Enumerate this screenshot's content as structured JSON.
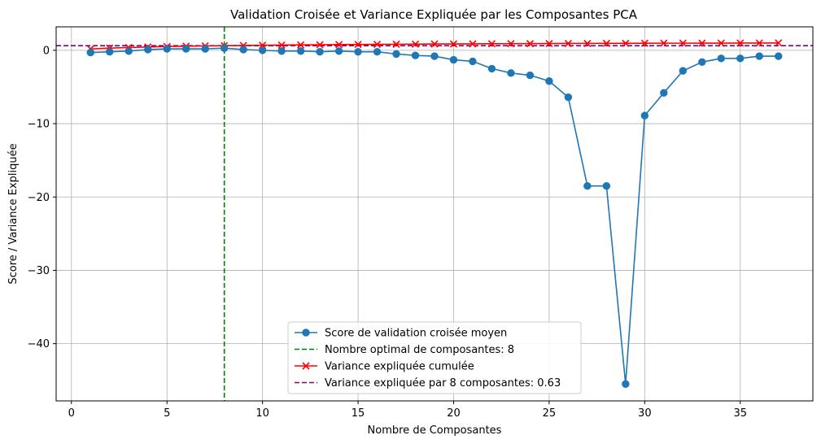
{
  "chart_data": {
    "type": "line",
    "title": "Validation Croisée et Variance Expliquée par les Composantes PCA",
    "xlabel": "Nombre de Composantes",
    "ylabel": "Score / Variance Expliquée",
    "xlim": [
      -0.8,
      38.8
    ],
    "ylim": [
      -47.8,
      3.2
    ],
    "xticks": [
      0,
      5,
      10,
      15,
      20,
      25,
      30,
      35
    ],
    "xtick_labels": [
      "0",
      "5",
      "10",
      "15",
      "20",
      "25",
      "30",
      "35"
    ],
    "yticks": [
      0,
      -10,
      -20,
      -30,
      -40
    ],
    "ytick_labels": [
      "0",
      "−10",
      "−20",
      "−30",
      "−40"
    ],
    "grid": true,
    "legend_position": "bottom-center",
    "x": [
      1,
      2,
      3,
      4,
      5,
      6,
      7,
      8,
      9,
      10,
      11,
      12,
      13,
      14,
      15,
      16,
      17,
      18,
      19,
      20,
      21,
      22,
      23,
      24,
      25,
      26,
      27,
      28,
      29,
      30,
      31,
      32,
      33,
      34,
      35,
      36,
      37
    ],
    "series": [
      {
        "name": "Score de validation croisée moyen",
        "color": "#1f77b4",
        "marker": "circle",
        "values": [
          -0.3,
          -0.2,
          -0.1,
          0.1,
          0.2,
          0.2,
          0.2,
          0.3,
          0.1,
          0.0,
          -0.1,
          -0.1,
          -0.2,
          -0.1,
          -0.2,
          -0.2,
          -0.5,
          -0.7,
          -0.8,
          -1.3,
          -1.5,
          -2.5,
          -3.1,
          -3.4,
          -4.2,
          -6.4,
          -18.5,
          -18.5,
          -45.5,
          -8.9,
          -5.8,
          -2.8,
          -1.6,
          -1.1,
          -1.1,
          -0.8,
          -0.8
        ]
      },
      {
        "name": "Variance expliquée cumulée",
        "color": "#ff0000",
        "marker": "x",
        "values": [
          0.18,
          0.3,
          0.38,
          0.45,
          0.52,
          0.56,
          0.6,
          0.63,
          0.66,
          0.69,
          0.71,
          0.74,
          0.76,
          0.78,
          0.8,
          0.81,
          0.83,
          0.84,
          0.86,
          0.87,
          0.88,
          0.89,
          0.9,
          0.91,
          0.92,
          0.93,
          0.94,
          0.95,
          0.95,
          0.96,
          0.97,
          0.97,
          0.98,
          0.98,
          0.99,
          0.99,
          1.0
        ]
      }
    ],
    "optimal_vline": {
      "name": "Nombre optimal de composantes: 8",
      "x": 8,
      "color": "#008000"
    },
    "variance_hline": {
      "name": "Variance expliquée par 8 composantes: 0.63",
      "y": 0.63,
      "color": "#800080"
    }
  }
}
